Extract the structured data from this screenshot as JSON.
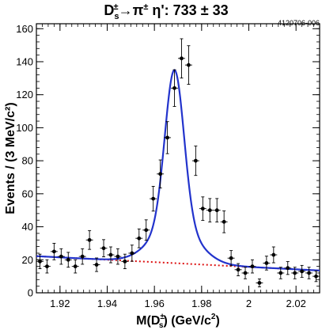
{
  "chart_data": {
    "type": "scatter",
    "title_parts": {
      "d": "D",
      "sub": "s",
      "sup": "±",
      "arrow": "→π",
      "pi_sup": "±",
      "rest": " η': 733 ± 33"
    },
    "plot_id": "4120706-006",
    "xlabel_parts": {
      "pre": "M(D",
      "sup": "±",
      "sub": "s",
      "post": ") (GeV/c",
      "exp": "2",
      "end": ")"
    },
    "ylabel": "Events / (3 MeV/c²)",
    "xlim": [
      1.91,
      2.03
    ],
    "ylim": [
      0,
      163
    ],
    "x_ticks": [
      1.92,
      1.94,
      1.96,
      1.98,
      2.0,
      2.02
    ],
    "x_tick_labels": [
      "1.92",
      "1.94",
      "1.96",
      "1.98",
      "2",
      "2.02"
    ],
    "y_ticks": [
      0,
      20,
      40,
      60,
      80,
      100,
      120,
      140,
      160
    ],
    "y_tick_labels": [
      "0",
      "20",
      "40",
      "60",
      "80",
      "100",
      "120",
      "140",
      "160"
    ],
    "bin_half_width": 0.0015,
    "series": [
      {
        "kind": "data points with error bars",
        "x": [
          1.9115,
          1.9145,
          1.9175,
          1.9205,
          1.9235,
          1.9265,
          1.9295,
          1.9325,
          1.9355,
          1.9385,
          1.9415,
          1.9445,
          1.9475,
          1.9505,
          1.9535,
          1.9565,
          1.9595,
          1.9625,
          1.9655,
          1.9685,
          1.9715,
          1.9745,
          1.9775,
          1.9805,
          1.9835,
          1.9865,
          1.9895,
          1.9925,
          1.9955,
          1.9985,
          2.0015,
          2.0045,
          2.0075,
          2.0105,
          2.0135,
          2.0165,
          2.0195,
          2.0225,
          2.0255,
          2.0285
        ],
        "y": [
          19,
          16,
          25,
          22,
          20,
          16,
          22,
          32,
          17,
          27,
          23,
          22,
          19,
          24,
          33,
          38,
          57,
          72,
          94,
          124,
          142,
          138,
          80,
          51,
          50,
          50,
          43,
          21,
          14,
          12,
          16,
          6,
          18,
          23,
          12,
          15,
          12,
          13,
          12,
          10
        ],
        "yerr": [
          4.4,
          4.0,
          5.0,
          4.7,
          4.5,
          4.0,
          4.7,
          5.7,
          4.1,
          5.2,
          4.8,
          4.7,
          4.4,
          4.9,
          5.7,
          6.2,
          7.5,
          8.5,
          9.7,
          11.1,
          11.9,
          11.7,
          8.9,
          7.1,
          7.1,
          7.1,
          6.6,
          4.6,
          3.7,
          3.5,
          4.0,
          2.4,
          4.2,
          4.8,
          3.5,
          3.9,
          3.5,
          3.6,
          3.5,
          3.2
        ]
      }
    ],
    "fit": {
      "kind": "total fit (signal + background)",
      "color": "#2233cc",
      "peak_mean": 1.9685,
      "peak_amplitude": 117
    },
    "background": {
      "kind": "linear background",
      "color": "#dd1111",
      "at_xmin": 22.2,
      "at_xmax": 13.5
    },
    "grid": false,
    "legend": "none"
  }
}
